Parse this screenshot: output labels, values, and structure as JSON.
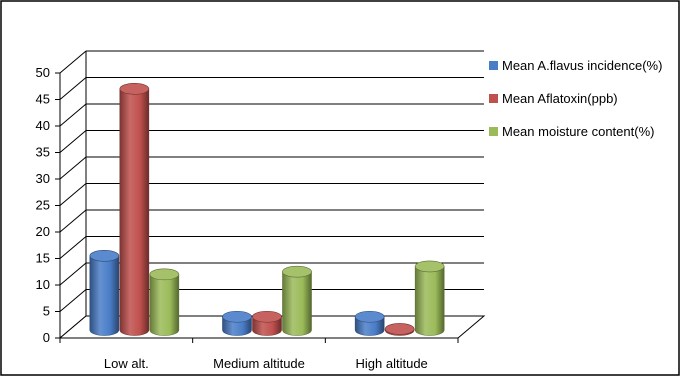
{
  "chart_data": {
    "type": "bar",
    "title": "",
    "xlabel": "",
    "ylabel": "",
    "ylim": [
      0,
      50
    ],
    "yticks": [
      0,
      5,
      10,
      15,
      20,
      25,
      30,
      35,
      40,
      45,
      50
    ],
    "grid": true,
    "legend_position": "right",
    "categories": [
      "Low alt.",
      "Medium altitude",
      "High altitude"
    ],
    "series": [
      {
        "name": "Mean A.flavus incidence(%)",
        "color": "#4a7dc8",
        "values": [
          14,
          2.5,
          2.5
        ]
      },
      {
        "name": "Mean Aflatoxin(ppb)",
        "color": "#c0504d",
        "values": [
          45.5,
          2.5,
          0.2
        ]
      },
      {
        "name": "Mean moisture content(%)",
        "color": "#9bbb59",
        "values": [
          10.5,
          11,
          12
        ]
      }
    ]
  }
}
